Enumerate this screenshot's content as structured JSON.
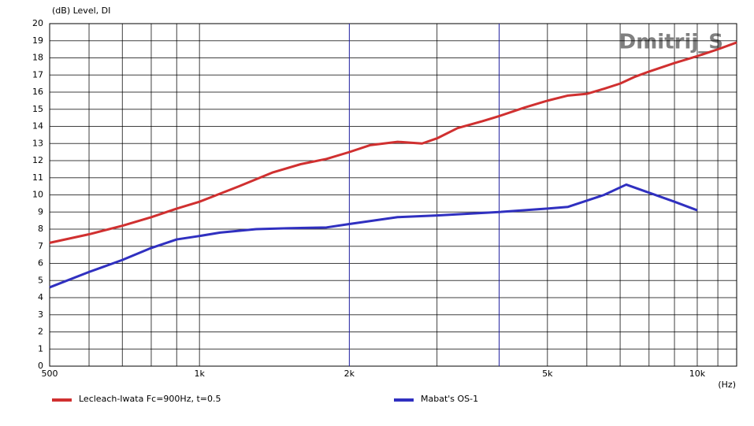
{
  "chart_data": {
    "type": "line",
    "log_x": true,
    "y_label": "(dB)  Level, DI",
    "x_label": "(Hz)",
    "watermark": "Dmitrij_S",
    "xlim": [
      500,
      12000
    ],
    "ylim": [
      0,
      20
    ],
    "xticks": [
      500,
      {
        "value": 1000,
        "label": "1k"
      },
      {
        "value": 2000,
        "label": "2k"
      },
      {
        "value": 5000,
        "label": "5k"
      },
      {
        "value": 10000,
        "label": "10k"
      }
    ],
    "xminor": [
      600,
      700,
      800,
      900,
      3000,
      4000,
      6000,
      7000,
      8000,
      9000,
      11000
    ],
    "markers": [
      2000,
      4000
    ],
    "marker_color": "#2020a0",
    "yticks": [
      0,
      1,
      2,
      3,
      4,
      5,
      6,
      7,
      8,
      9,
      10,
      11,
      12,
      13,
      14,
      15,
      16,
      17,
      18,
      19,
      20
    ],
    "grid": true,
    "series": [
      {
        "name": "Lecleach-Iwata Fc=900Hz, t=0.5",
        "color": "#d03030",
        "x": [
          500,
          600,
          700,
          800,
          900,
          1000,
          1200,
          1400,
          1600,
          1800,
          2000,
          2200,
          2500,
          2800,
          3000,
          3300,
          3700,
          4000,
          4500,
          5000,
          5500,
          6000,
          6500,
          7000,
          7500,
          8000,
          9000,
          10000,
          11000,
          12000
        ],
        "values": [
          7.2,
          7.7,
          8.2,
          8.7,
          9.2,
          9.6,
          10.5,
          11.3,
          11.8,
          12.1,
          12.5,
          12.9,
          13.1,
          13.0,
          13.3,
          13.9,
          14.3,
          14.6,
          15.1,
          15.5,
          15.8,
          15.9,
          16.2,
          16.5,
          16.9,
          17.2,
          17.7,
          18.1,
          18.5,
          18.9
        ]
      },
      {
        "name": "Mabat's OS-1",
        "color": "#3030c0",
        "x": [
          500,
          600,
          700,
          800,
          900,
          1000,
          1100,
          1300,
          1500,
          1800,
          2000,
          2500,
          3000,
          4000,
          5000,
          5500,
          6500,
          7200,
          9000,
          10000
        ],
        "values": [
          4.6,
          5.5,
          6.2,
          6.9,
          7.4,
          7.6,
          7.8,
          8.0,
          8.05,
          8.1,
          8.3,
          8.7,
          8.8,
          9.0,
          9.2,
          9.3,
          10.0,
          10.6,
          9.6,
          9.1
        ]
      }
    ]
  }
}
